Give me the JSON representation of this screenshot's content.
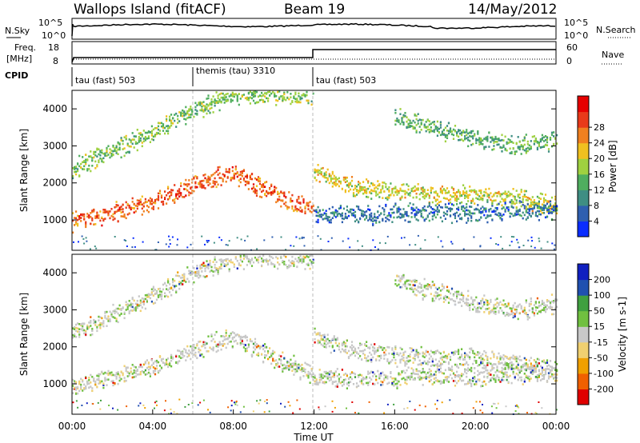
{
  "header": {
    "radar": "Wallops Island (fitACF)",
    "beam": "Beam 19",
    "date": "14/May/2012"
  },
  "aux_labels": {
    "nsky": "N.Sky",
    "nsky_hi": "10^5",
    "nsky_lo": "10^0",
    "nsearch": "N.Search",
    "nsearch_hi": "10^5",
    "nsearch_lo": "10^0",
    "freq_line1": "Freq.",
    "freq_line2": "[MHz]",
    "freq_hi": "18",
    "freq_lo": "8",
    "nave": "Nave",
    "nave_hi": "60",
    "nave_lo": "0",
    "cpid": "CPID"
  },
  "cpid_segments": [
    {
      "label": "tau (fast) 503",
      "start_hour": 0
    },
    {
      "label": "themis (tau) 3310",
      "start_hour": 6
    },
    {
      "label": "tau (fast) 503",
      "start_hour": 12
    }
  ],
  "colors": {
    "power_scale": [
      "#0a2dff",
      "#2f5fb0",
      "#3f8e83",
      "#4fae5f",
      "#9fd140",
      "#f0c020",
      "#f08020",
      "#e83a1a",
      "#e60000"
    ],
    "velocity_scale": [
      "#e00000",
      "#f06000",
      "#f0a000",
      "#f0d070",
      "#c8c8c8",
      "#70c040",
      "#40a040",
      "#2050b0",
      "#1020c0"
    ]
  },
  "chart_data": [
    {
      "type": "heatmap",
      "panel": "power",
      "ylabel": "Slant Range [km]",
      "xlabel": "",
      "ylim": [
        180,
        4500
      ],
      "yticks": [
        1000,
        2000,
        3000,
        4000
      ],
      "xlim": [
        0,
        24
      ],
      "colorbar": {
        "label": "Power [dB]",
        "tick_labels": [
          "4",
          "8",
          "12",
          "16",
          "20",
          "24",
          "28"
        ]
      },
      "echo_bands": [
        {
          "t": [
            0,
            2,
            4,
            6,
            8,
            10,
            12
          ],
          "range_km": [
            950,
            1200,
            1500,
            1950,
            2300,
            1700,
            1300
          ],
          "power_db": 26
        },
        {
          "t": [
            0,
            2,
            4,
            6,
            8,
            10,
            12
          ],
          "range_km": [
            2400,
            2900,
            3400,
            4000,
            4400,
            4400,
            4400
          ],
          "power_db": 14
        },
        {
          "t": [
            12,
            14,
            16,
            18,
            20,
            22,
            24
          ],
          "range_km": [
            2300,
            1900,
            1800,
            1700,
            1700,
            1600,
            1400
          ],
          "power_db": 18
        },
        {
          "t": [
            12,
            14,
            16,
            18,
            20,
            22,
            24
          ],
          "range_km": [
            1200,
            1150,
            1200,
            1250,
            1200,
            1300,
            1300
          ],
          "power_db": 6
        },
        {
          "t": [
            16,
            18,
            20,
            22,
            24
          ],
          "range_km": [
            3800,
            3500,
            3200,
            3000,
            3200
          ],
          "power_db": 12
        }
      ]
    },
    {
      "type": "heatmap",
      "panel": "velocity",
      "ylabel": "Slant Range [km]",
      "xlabel": "Time UT",
      "ylim": [
        180,
        4500
      ],
      "yticks": [
        1000,
        2000,
        3000,
        4000
      ],
      "xlim": [
        0,
        24
      ],
      "xtick_labels": [
        "00:00",
        "04:00",
        "08:00",
        "12:00",
        "16:00",
        "20:00",
        "00:00"
      ],
      "colorbar": {
        "label": "Velocity [m s-1]",
        "tick_labels": [
          "-200",
          "-100",
          "-50",
          "-15",
          "15",
          "50",
          "100",
          "200"
        ]
      }
    }
  ]
}
